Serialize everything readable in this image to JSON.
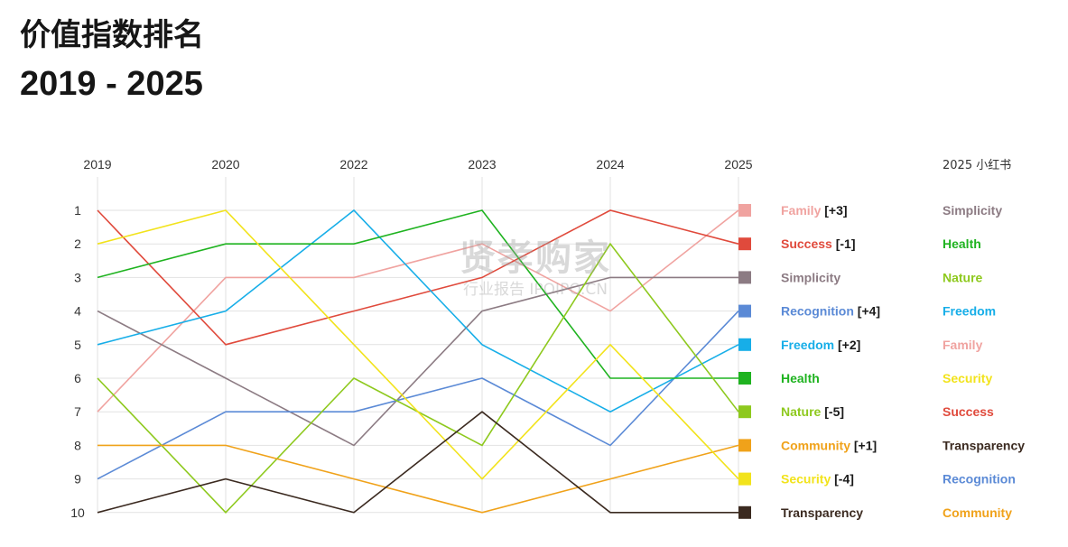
{
  "title": "价值指数排名",
  "subtitle": "2019 - 2025",
  "watermark": {
    "main": "贤孝购家",
    "sub": "行业报告 IPOIPO.CN"
  },
  "chart_data": {
    "type": "line",
    "x": [
      "2019",
      "2020",
      "2022",
      "2023",
      "2024",
      "2025"
    ],
    "y_ticks": [
      1,
      2,
      3,
      4,
      5,
      6,
      7,
      8,
      9,
      10
    ],
    "ylim": [
      1,
      10
    ],
    "y_inverted": true,
    "grid": true,
    "right_column_header": "2025 小红书",
    "series": [
      {
        "name": "Family",
        "change": "[+3]",
        "color": "#f0a3a0",
        "values": [
          7,
          3,
          3,
          2,
          4,
          1
        ]
      },
      {
        "name": "Success",
        "change": "[-1]",
        "color": "#e04a3c",
        "values": [
          1,
          5,
          4,
          3,
          1,
          2
        ]
      },
      {
        "name": "Simplicity",
        "change": "",
        "color": "#8c7b83",
        "values": [
          4,
          6,
          8,
          4,
          3,
          3
        ]
      },
      {
        "name": "Recognition",
        "change": "[+4]",
        "color": "#5b8ad6",
        "values": [
          9,
          7,
          7,
          6,
          8,
          4
        ]
      },
      {
        "name": "Freedom",
        "change": "[+2]",
        "color": "#17aee8",
        "values": [
          5,
          4,
          1,
          5,
          7,
          5
        ]
      },
      {
        "name": "Health",
        "change": "",
        "color": "#1fb320",
        "values": [
          3,
          2,
          2,
          1,
          6,
          6
        ]
      },
      {
        "name": "Nature",
        "change": "[-5]",
        "color": "#8ec91e",
        "values": [
          6,
          10,
          6,
          8,
          2,
          7
        ]
      },
      {
        "name": "Community",
        "change": "[+1]",
        "color": "#f0a21a",
        "values": [
          8,
          8,
          9,
          10,
          9,
          8
        ]
      },
      {
        "name": "Security",
        "change": "[-4]",
        "color": "#f2e31c",
        "values": [
          2,
          1,
          5,
          9,
          5,
          9
        ]
      },
      {
        "name": "Transparency",
        "change": "",
        "color": "#3b2a20",
        "values": [
          10,
          9,
          10,
          7,
          10,
          10
        ]
      }
    ],
    "right_column": [
      {
        "label": "Simplicity",
        "color": "#8c7b83"
      },
      {
        "label": "Health",
        "color": "#1fb320"
      },
      {
        "label": "Nature",
        "color": "#8ec91e"
      },
      {
        "label": "Freedom",
        "color": "#17aee8"
      },
      {
        "label": "Family",
        "color": "#f0a3a0"
      },
      {
        "label": "Security",
        "color": "#f2e31c"
      },
      {
        "label": "Success",
        "color": "#e04a3c"
      },
      {
        "label": "Transparency",
        "color": "#3b2a20"
      },
      {
        "label": "Recognition",
        "color": "#5b8ad6"
      },
      {
        "label": "Community",
        "color": "#f0a21a"
      }
    ]
  }
}
